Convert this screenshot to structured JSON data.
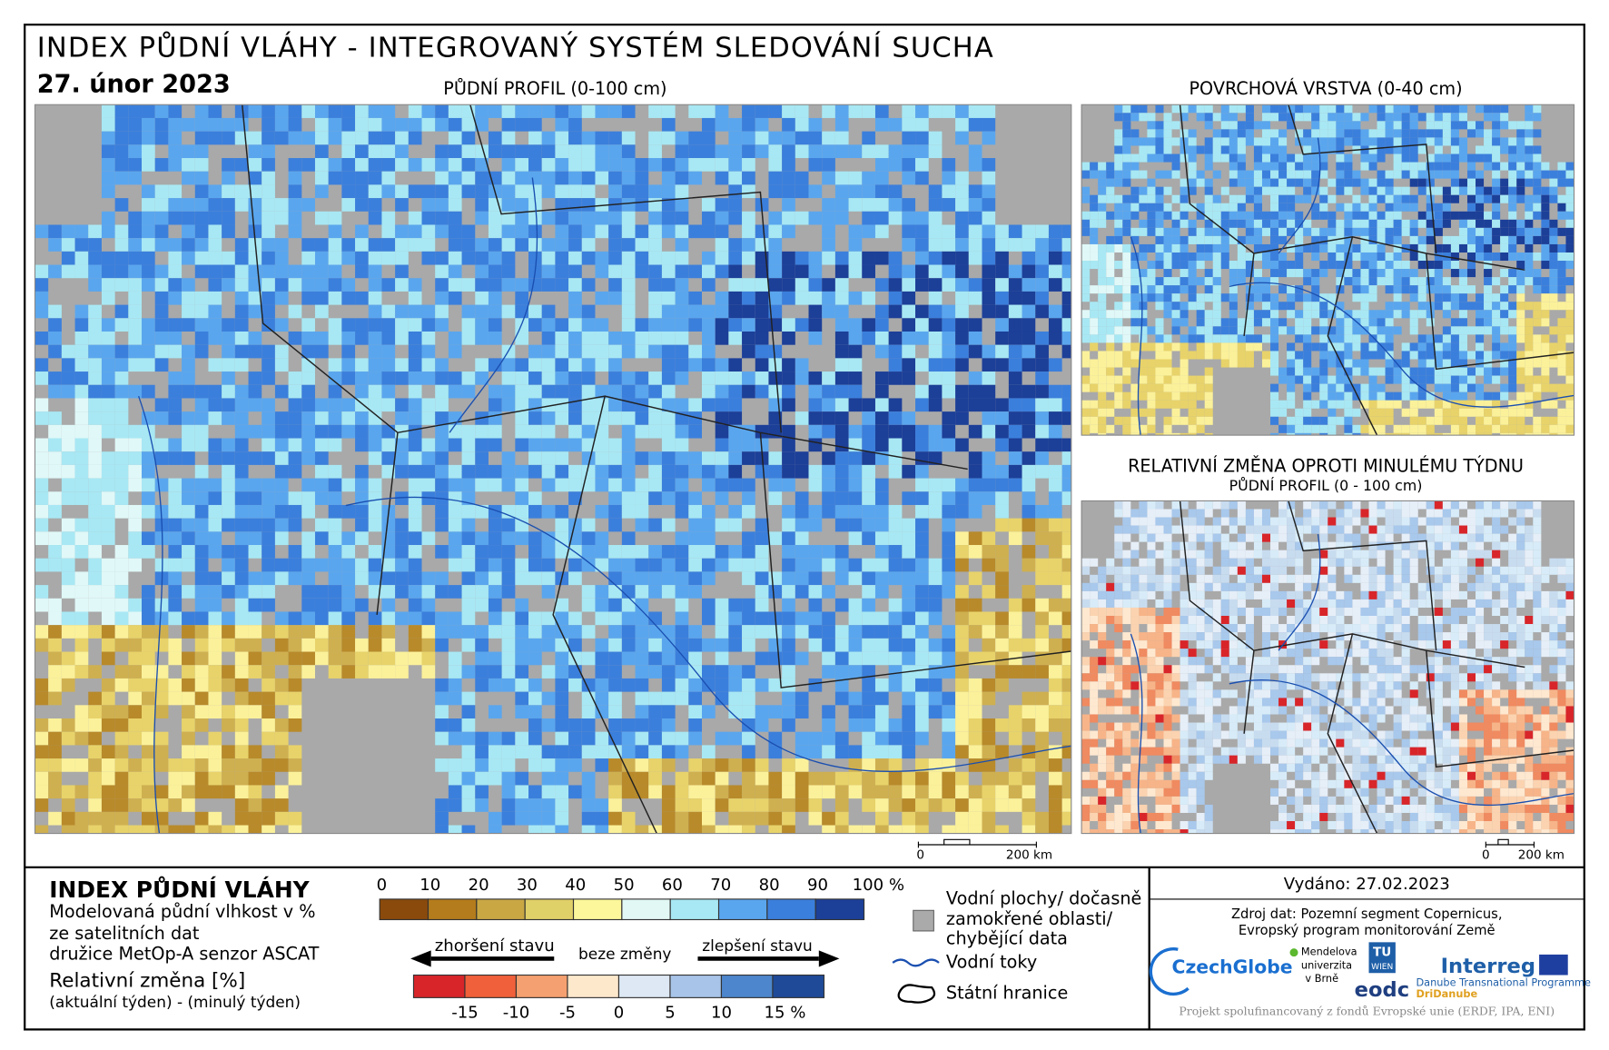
{
  "header": {
    "title": "INDEX PŮDNÍ VLÁHY - INTEGROVANÝ SYSTÉM SLEDOVÁNÍ SUCHA",
    "date": "27. únor 2023"
  },
  "maps": {
    "main": {
      "title": "PŮDNÍ PROFIL (0-100 cm)",
      "scale": [
        "0",
        "200 km"
      ]
    },
    "surface": {
      "title": "POVRCHOVÁ VRSTVA (0-40 cm)"
    },
    "change": {
      "title": "RELATIVNÍ ZMĚNA OPROTI MINULÉMU TÝDNU",
      "subtitle": "PŮDNÍ PROFIL (0 - 100 cm)",
      "scale": [
        "0",
        "200 km"
      ]
    }
  },
  "legend": {
    "title": "INDEX PŮDNÍ VLÁHY",
    "description": [
      "Modelovaná půdní vlhkost v %",
      "ze satelitních dat",
      "družice MetOp-A senzor ASCAT"
    ],
    "change_title": "Relativní změna [%]",
    "change_description": "(aktuální týden) - (minulý týden)",
    "moisture_ticks": [
      "0",
      "10",
      "20",
      "30",
      "40",
      "50",
      "60",
      "70",
      "80",
      "90",
      "100 %"
    ],
    "change_ticks": [
      "-15",
      "-10",
      "-5",
      "0",
      "5",
      "10",
      "15 %"
    ],
    "arrows": [
      "zhoršení stavu",
      "beze změny",
      "zlepšení stavu"
    ],
    "key": {
      "water_areas": [
        "Vodní plochy/ dočasně",
        "zamokřené oblasti/",
        "chybějící data"
      ],
      "rivers": "Vodní toky",
      "borders": "Státní hranice"
    }
  },
  "info": {
    "issued": "Vydáno: 27.02.2023",
    "source": [
      "Zdroj dat: Pozemní segment Copernicus,",
      "Evropský program monitorování Země"
    ],
    "logos": [
      "CzechGlobe",
      "Mendelova",
      "univerzita",
      "v Brně",
      "TU",
      "WIEN",
      "eodc",
      "Interreg",
      "Danube Transnational Programme",
      "DriDanube"
    ],
    "footer": "Projekt spolufinancovaný z fondů Evropské unie (ERDF, IPA, ENI)"
  }
}
